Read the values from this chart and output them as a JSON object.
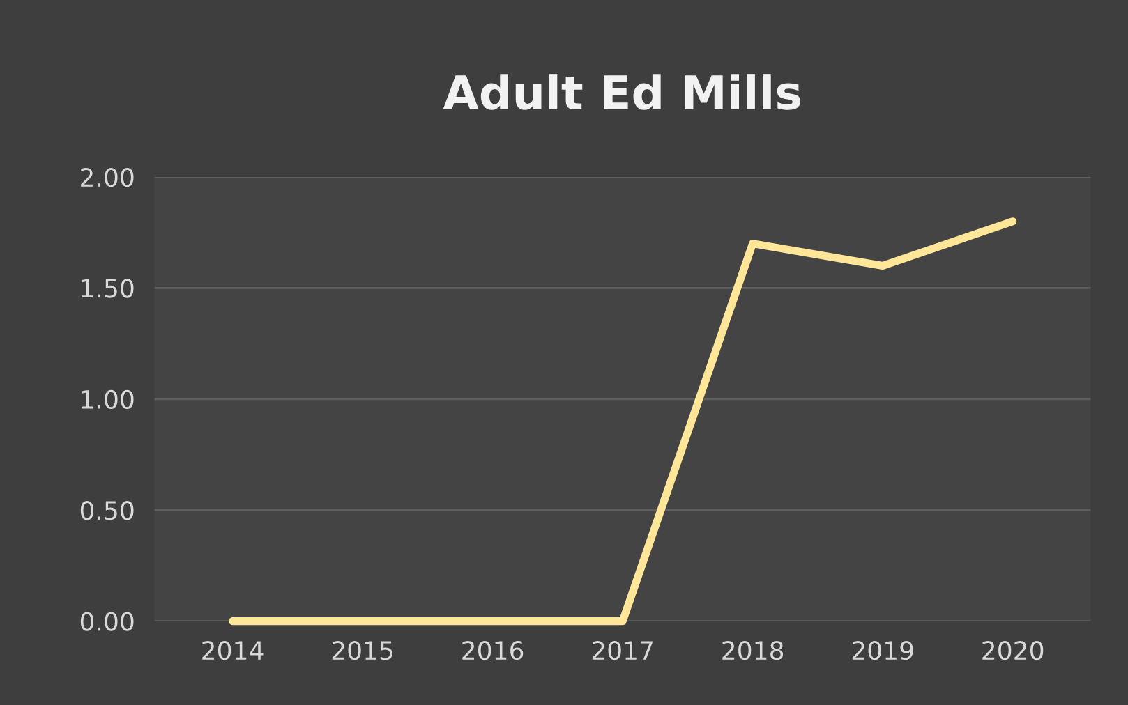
{
  "chart_data": {
    "type": "line",
    "title": "Adult Ed Mills",
    "categories": [
      "2014",
      "2015",
      "2016",
      "2017",
      "2018",
      "2019",
      "2020"
    ],
    "series": [
      {
        "color": "#ffe699",
        "values": [
          0,
          0,
          0,
          0,
          1.7,
          1.6,
          1.8
        ]
      }
    ],
    "ylim": [
      0,
      2
    ],
    "yticks": [
      {
        "value": 0,
        "label": "0.00"
      },
      {
        "value": 0.5,
        "label": "0.50"
      },
      {
        "value": 1,
        "label": "1.00"
      },
      {
        "value": 1.5,
        "label": "1.50"
      },
      {
        "value": 2,
        "label": "2.00"
      }
    ],
    "grid": "y",
    "marker": "none",
    "line_style": "solid"
  }
}
